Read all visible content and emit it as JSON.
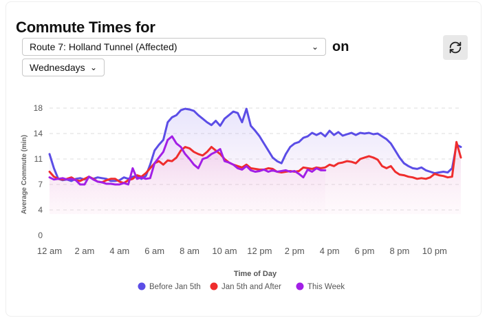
{
  "header": {
    "title": "Commute Times for",
    "route_selected": "Route 7: Holland Tunnel (Affected)",
    "on_label": "on",
    "day_selected": "Wednesdays",
    "refresh_icon": "refresh-icon"
  },
  "chart_data": {
    "type": "line",
    "title": "",
    "xlabel": "Time of Day",
    "ylabel": "Average Commute (min)",
    "xlim": [
      0,
      23.5
    ],
    "ylim": [
      0,
      18
    ],
    "x_ticks": [
      {
        "v": 0,
        "label": "12 am"
      },
      {
        "v": 2,
        "label": "2 am"
      },
      {
        "v": 4,
        "label": "4 am"
      },
      {
        "v": 6,
        "label": "6 am"
      },
      {
        "v": 8,
        "label": "8 am"
      },
      {
        "v": 10,
        "label": "10 am"
      },
      {
        "v": 12,
        "label": "12 pm"
      },
      {
        "v": 14,
        "label": "2 pm"
      },
      {
        "v": 16,
        "label": "4 pm"
      },
      {
        "v": 18,
        "label": "6 pm"
      },
      {
        "v": 20,
        "label": "8 pm"
      },
      {
        "v": 22,
        "label": "10 pm"
      }
    ],
    "y_ticks": [
      {
        "v": 0,
        "label": "0"
      },
      {
        "v": 3.6,
        "label": "4"
      },
      {
        "v": 7.2,
        "label": "7"
      },
      {
        "v": 10.8,
        "label": "11"
      },
      {
        "v": 14.4,
        "label": "14"
      },
      {
        "v": 18,
        "label": "18"
      }
    ],
    "grid": true,
    "legend_position": "bottom",
    "series": [
      {
        "name": "Before Jan 5th",
        "color": "#5b4de6",
        "points": [
          [
            0,
            11.5
          ],
          [
            0.25,
            9.5
          ],
          [
            0.5,
            8.0
          ],
          [
            0.75,
            7.8
          ],
          [
            1,
            7.9
          ],
          [
            1.25,
            7.7
          ],
          [
            1.5,
            8.0
          ],
          [
            1.75,
            8.1
          ],
          [
            2,
            7.9
          ],
          [
            2.25,
            8.3
          ],
          [
            2.5,
            8.0
          ],
          [
            2.75,
            8.2
          ],
          [
            3,
            8.1
          ],
          [
            3.25,
            8.0
          ],
          [
            3.5,
            7.7
          ],
          [
            3.75,
            7.7
          ],
          [
            4,
            7.8
          ],
          [
            4.25,
            8.2
          ],
          [
            4.5,
            8.0
          ],
          [
            4.75,
            8.3
          ],
          [
            5,
            8.4
          ],
          [
            5.25,
            8.0
          ],
          [
            5.5,
            8.4
          ],
          [
            5.75,
            10.0
          ],
          [
            6,
            12.0
          ],
          [
            6.25,
            12.8
          ],
          [
            6.5,
            13.5
          ],
          [
            6.75,
            16.0
          ],
          [
            7,
            16.7
          ],
          [
            7.25,
            17.0
          ],
          [
            7.5,
            17.7
          ],
          [
            7.75,
            17.9
          ],
          [
            8,
            17.8
          ],
          [
            8.25,
            17.6
          ],
          [
            8.5,
            17.0
          ],
          [
            8.75,
            16.5
          ],
          [
            9,
            16.0
          ],
          [
            9.25,
            15.6
          ],
          [
            9.5,
            16.2
          ],
          [
            9.75,
            15.5
          ],
          [
            10,
            16.5
          ],
          [
            10.25,
            17.0
          ],
          [
            10.5,
            17.5
          ],
          [
            10.75,
            17.3
          ],
          [
            11,
            16.0
          ],
          [
            11.25,
            17.9
          ],
          [
            11.5,
            15.5
          ],
          [
            11.75,
            14.8
          ],
          [
            12,
            14.0
          ],
          [
            12.25,
            13.0
          ],
          [
            12.5,
            12.0
          ],
          [
            12.75,
            11.0
          ],
          [
            13,
            10.5
          ],
          [
            13.25,
            10.2
          ],
          [
            13.5,
            11.5
          ],
          [
            13.75,
            12.5
          ],
          [
            14,
            13.0
          ],
          [
            14.25,
            13.2
          ],
          [
            14.5,
            13.8
          ],
          [
            14.75,
            14.0
          ],
          [
            15,
            14.5
          ],
          [
            15.25,
            14.2
          ],
          [
            15.5,
            14.5
          ],
          [
            15.75,
            14.0
          ],
          [
            16,
            14.8
          ],
          [
            16.25,
            14.2
          ],
          [
            16.5,
            14.6
          ],
          [
            16.75,
            14.1
          ],
          [
            17,
            14.3
          ],
          [
            17.25,
            14.5
          ],
          [
            17.5,
            14.2
          ],
          [
            17.75,
            14.5
          ],
          [
            18,
            14.4
          ],
          [
            18.25,
            14.5
          ],
          [
            18.5,
            14.3
          ],
          [
            18.75,
            14.4
          ],
          [
            19,
            14.0
          ],
          [
            19.25,
            13.6
          ],
          [
            19.5,
            13.0
          ],
          [
            19.75,
            12.0
          ],
          [
            20,
            11.0
          ],
          [
            20.25,
            10.2
          ],
          [
            20.5,
            9.8
          ],
          [
            20.75,
            9.5
          ],
          [
            21,
            9.4
          ],
          [
            21.25,
            9.6
          ],
          [
            21.5,
            9.2
          ],
          [
            21.75,
            9.0
          ],
          [
            22,
            8.8
          ],
          [
            22.25,
            8.9
          ],
          [
            22.5,
            9.0
          ],
          [
            22.75,
            8.9
          ],
          [
            23,
            9.5
          ],
          [
            23.25,
            12.8
          ],
          [
            23.5,
            12.5
          ]
        ]
      },
      {
        "name": "Jan 5th and After",
        "color": "#ef2d2d",
        "points": [
          [
            0,
            9.0
          ],
          [
            0.25,
            8.3
          ],
          [
            0.5,
            8.0
          ],
          [
            0.75,
            7.9
          ],
          [
            1,
            8.0
          ],
          [
            1.25,
            8.2
          ],
          [
            1.5,
            7.8
          ],
          [
            1.75,
            7.7
          ],
          [
            2,
            8.0
          ],
          [
            2.25,
            8.3
          ],
          [
            2.5,
            8.0
          ],
          [
            2.75,
            7.6
          ],
          [
            3,
            7.5
          ],
          [
            3.25,
            7.8
          ],
          [
            3.5,
            8.0
          ],
          [
            3.75,
            8.0
          ],
          [
            4,
            7.6
          ],
          [
            4.25,
            7.4
          ],
          [
            4.5,
            7.8
          ],
          [
            4.75,
            8.0
          ],
          [
            5,
            8.5
          ],
          [
            5.25,
            8.3
          ],
          [
            5.5,
            8.8
          ],
          [
            5.75,
            9.5
          ],
          [
            6,
            10.2
          ],
          [
            6.25,
            10.5
          ],
          [
            6.5,
            10.0
          ],
          [
            6.75,
            10.6
          ],
          [
            7,
            10.5
          ],
          [
            7.25,
            11.0
          ],
          [
            7.5,
            12.0
          ],
          [
            7.75,
            12.5
          ],
          [
            8,
            12.3
          ],
          [
            8.25,
            11.8
          ],
          [
            8.5,
            11.5
          ],
          [
            8.75,
            11.3
          ],
          [
            9,
            11.8
          ],
          [
            9.25,
            12.5
          ],
          [
            9.5,
            12.0
          ],
          [
            9.75,
            11.5
          ],
          [
            10,
            10.8
          ],
          [
            10.25,
            10.3
          ],
          [
            10.5,
            10.0
          ],
          [
            10.75,
            9.8
          ],
          [
            11,
            9.6
          ],
          [
            11.25,
            10.0
          ],
          [
            11.5,
            9.5
          ],
          [
            11.75,
            9.4
          ],
          [
            12,
            9.3
          ],
          [
            12.25,
            9.3
          ],
          [
            12.5,
            9.5
          ],
          [
            12.75,
            9.4
          ],
          [
            13,
            9.0
          ],
          [
            13.25,
            8.9
          ],
          [
            13.5,
            9.0
          ],
          [
            13.75,
            9.1
          ],
          [
            14,
            9.0
          ],
          [
            14.25,
            9.1
          ],
          [
            14.5,
            9.6
          ],
          [
            14.75,
            9.5
          ],
          [
            15,
            9.4
          ],
          [
            15.25,
            9.6
          ],
          [
            15.5,
            9.5
          ],
          [
            15.75,
            9.6
          ],
          [
            16,
            10.0
          ],
          [
            16.25,
            9.8
          ],
          [
            16.5,
            10.2
          ],
          [
            16.75,
            10.3
          ],
          [
            17,
            10.5
          ],
          [
            17.25,
            10.4
          ],
          [
            17.5,
            10.2
          ],
          [
            17.75,
            10.8
          ],
          [
            18,
            11.0
          ],
          [
            18.25,
            11.2
          ],
          [
            18.5,
            11.0
          ],
          [
            18.75,
            10.7
          ],
          [
            19,
            9.8
          ],
          [
            19.25,
            9.5
          ],
          [
            19.5,
            9.8
          ],
          [
            19.75,
            9.0
          ],
          [
            20,
            8.6
          ],
          [
            20.25,
            8.5
          ],
          [
            20.5,
            8.3
          ],
          [
            20.75,
            8.2
          ],
          [
            21,
            8.0
          ],
          [
            21.25,
            8.1
          ],
          [
            21.5,
            8.0
          ],
          [
            21.75,
            8.2
          ],
          [
            22,
            8.7
          ],
          [
            22.25,
            8.5
          ],
          [
            22.5,
            8.4
          ],
          [
            22.75,
            8.2
          ],
          [
            23,
            8.3
          ],
          [
            23.25,
            13.2
          ],
          [
            23.5,
            11.0
          ]
        ]
      },
      {
        "name": "This Week",
        "color": "#a21fe6",
        "points": [
          [
            0,
            8.2
          ],
          [
            0.25,
            7.9
          ],
          [
            0.5,
            8.0
          ],
          [
            0.75,
            8.1
          ],
          [
            1,
            7.9
          ],
          [
            1.25,
            8.0
          ],
          [
            1.5,
            7.8
          ],
          [
            1.75,
            7.2
          ],
          [
            2,
            7.2
          ],
          [
            2.25,
            8.3
          ],
          [
            2.5,
            7.9
          ],
          [
            2.75,
            7.6
          ],
          [
            3,
            7.5
          ],
          [
            3.25,
            7.3
          ],
          [
            3.5,
            7.3
          ],
          [
            3.75,
            7.2
          ],
          [
            4,
            7.2
          ],
          [
            4.25,
            7.4
          ],
          [
            4.5,
            7.2
          ],
          [
            4.75,
            9.5
          ],
          [
            5,
            8.0
          ],
          [
            5.25,
            8.2
          ],
          [
            5.5,
            8.0
          ],
          [
            5.75,
            8.1
          ],
          [
            6,
            10.2
          ],
          [
            6.25,
            11.0
          ],
          [
            6.5,
            11.8
          ],
          [
            6.75,
            13.5
          ],
          [
            7,
            14.0
          ],
          [
            7.25,
            13.0
          ],
          [
            7.5,
            12.5
          ],
          [
            7.75,
            11.5
          ],
          [
            8,
            10.8
          ],
          [
            8.25,
            10.0
          ],
          [
            8.5,
            9.5
          ],
          [
            8.75,
            10.8
          ],
          [
            9,
            11.0
          ],
          [
            9.25,
            11.5
          ],
          [
            9.5,
            11.8
          ],
          [
            9.75,
            12.2
          ],
          [
            10,
            10.5
          ],
          [
            10.25,
            10.3
          ],
          [
            10.5,
            10.0
          ],
          [
            10.75,
            9.5
          ],
          [
            11,
            9.3
          ],
          [
            11.25,
            9.8
          ],
          [
            11.5,
            9.2
          ],
          [
            11.75,
            9.0
          ],
          [
            12,
            9.1
          ],
          [
            12.25,
            9.3
          ],
          [
            12.5,
            9.0
          ],
          [
            12.75,
            9.2
          ],
          [
            13,
            9.0
          ],
          [
            13.25,
            9.1
          ],
          [
            13.5,
            9.2
          ],
          [
            13.75,
            9.0
          ],
          [
            14,
            9.1
          ],
          [
            14.25,
            8.7
          ],
          [
            14.5,
            8.2
          ],
          [
            14.75,
            9.3
          ],
          [
            15,
            9.0
          ],
          [
            15.25,
            9.5
          ],
          [
            15.5,
            9.2
          ],
          [
            15.75,
            9.2
          ]
        ]
      }
    ]
  }
}
